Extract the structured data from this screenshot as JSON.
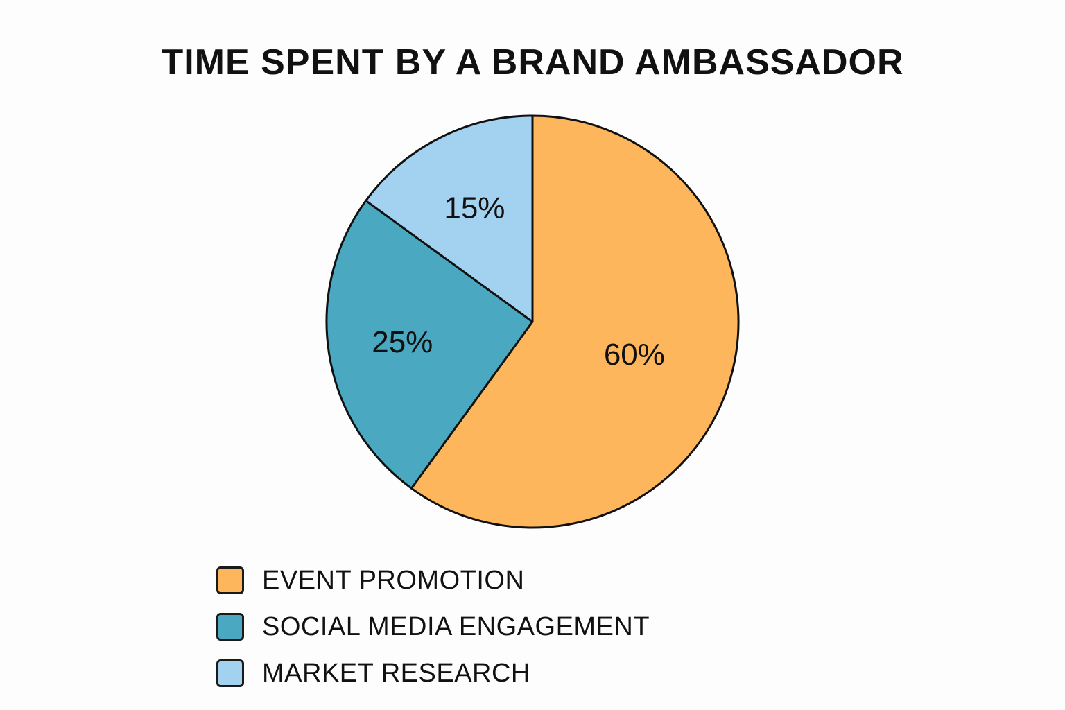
{
  "chart_data": {
    "type": "pie",
    "title": "TIME SPENT BY A BRAND AMBASSADOR",
    "slices": [
      {
        "label": "EVENT PROMOTION",
        "value": 60,
        "display": "60%",
        "color": "#fdb65b"
      },
      {
        "label": "SOCIAL MEDIA ENGAGEMENT",
        "value": 25,
        "display": "25%",
        "color": "#4aa8c1"
      },
      {
        "label": "MARKET RESEARCH",
        "value": 15,
        "display": "15%",
        "color": "#a3d1f0"
      }
    ],
    "start_angle": "12 o'clock",
    "direction": "clockwise",
    "legend_placement": "bottom-left"
  }
}
